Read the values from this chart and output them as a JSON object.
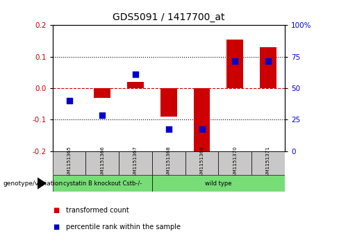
{
  "title": "GDS5091 / 1417700_at",
  "samples": [
    "GSM1151365",
    "GSM1151366",
    "GSM1151367",
    "GSM1151368",
    "GSM1151369",
    "GSM1151370",
    "GSM1151371"
  ],
  "red_bars": [
    0.001,
    -0.03,
    0.02,
    -0.09,
    -0.21,
    0.155,
    0.13
  ],
  "blue_dots_y": [
    -0.04,
    -0.085,
    0.045,
    -0.13,
    -0.13,
    0.085,
    0.085
  ],
  "ylim": [
    -0.2,
    0.2
  ],
  "yticks_left": [
    -0.2,
    -0.1,
    0.0,
    0.1,
    0.2
  ],
  "yticks_right_vals": [
    0,
    25,
    50,
    75,
    100
  ],
  "group_labels": [
    "cystatin B knockout Cstb-/-",
    "wild type"
  ],
  "group_ranges": [
    [
      0,
      3
    ],
    [
      3,
      7
    ]
  ],
  "red_color": "#cc0000",
  "blue_color": "#0000cc",
  "bar_width": 0.5,
  "dot_size": 30,
  "genotype_label": "genotype/variation",
  "legend_red": "transformed count",
  "legend_blue": "percentile rank within the sample",
  "tick_label_color_left": "#cc0000",
  "tick_label_color_right": "#0000cc",
  "title_fontsize": 10,
  "axis_fontsize": 7.5
}
